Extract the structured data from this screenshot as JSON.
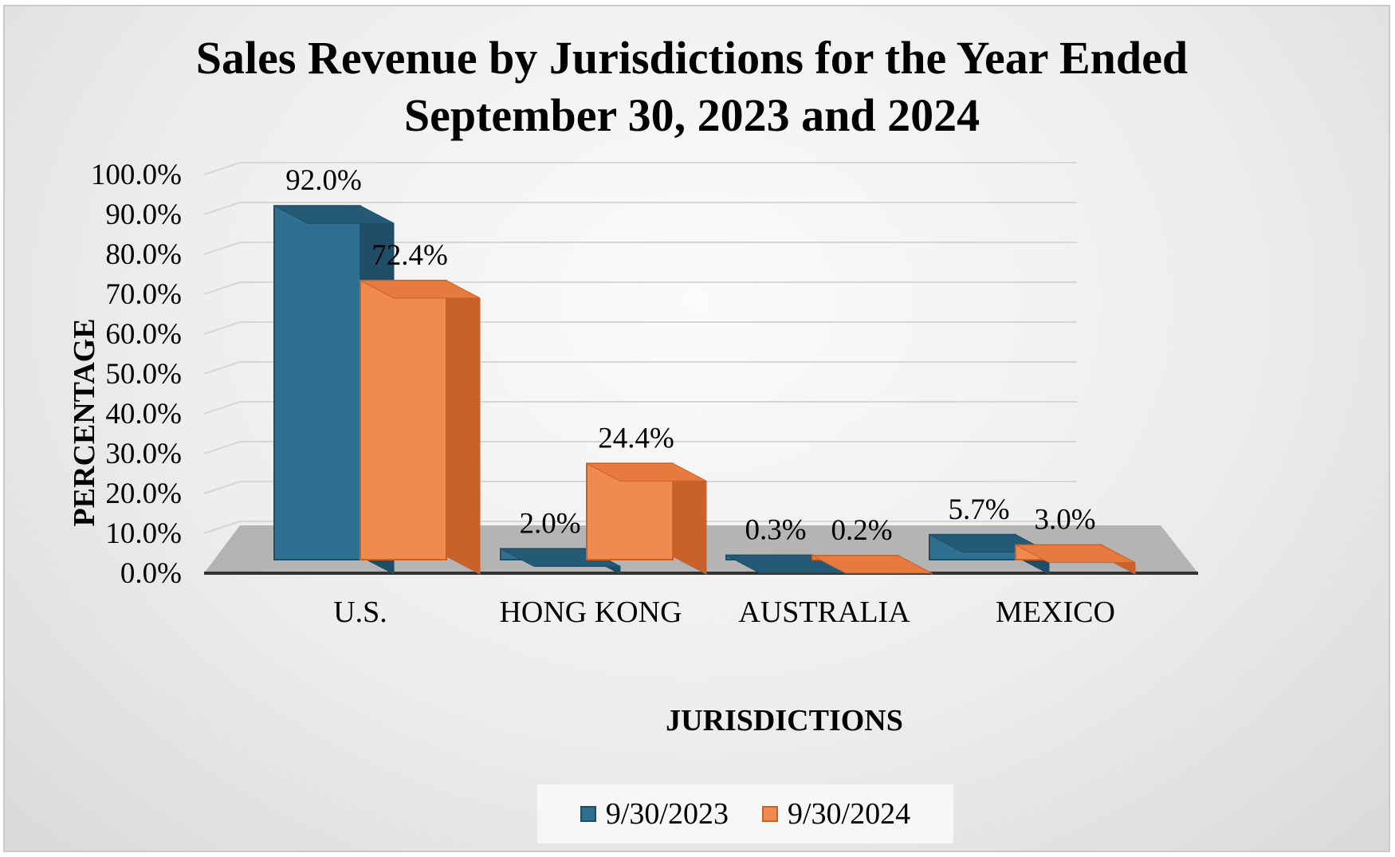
{
  "chart_data": {
    "type": "bar",
    "title": [
      "Sales Revenue by Jurisdictions for the Year Ended",
      "September 30, 2023 and 2024"
    ],
    "xlabel": "JURISDICTIONS",
    "ylabel": "PERCENTAGE",
    "categories": [
      "U.S.",
      "HONG KONG",
      "AUSTRALIA",
      "MEXICO"
    ],
    "series": [
      {
        "name": "9/30/2023",
        "values": [
          92.0,
          2.0,
          0.3,
          5.7
        ],
        "labels": [
          "92.0%",
          "2.0%",
          "0.3%",
          "5.7%"
        ]
      },
      {
        "name": "9/30/2024",
        "values": [
          72.4,
          24.4,
          0.2,
          3.0
        ],
        "labels": [
          "72.4%",
          "24.4%",
          "0.2%",
          "3.0%"
        ]
      }
    ],
    "ylim": [
      0,
      100
    ],
    "yticks": [
      "0.0%",
      "10.0%",
      "20.0%",
      "30.0%",
      "40.0%",
      "50.0%",
      "60.0%",
      "70.0%",
      "80.0%",
      "90.0%",
      "100.0%"
    ],
    "grid": true,
    "style": "3d-clustered-column",
    "legend_position": "bottom",
    "colors": {
      "series_2023_front": "#2f7090",
      "series_2023_side": "#1f4e66",
      "series_2023_top": "#245a76",
      "series_2024_front": "#f08a4e",
      "series_2024_side": "#c8622a",
      "series_2024_top": "#e77a3e",
      "floor": "#a9a9a9",
      "gridline": "#d6d6d6",
      "axis": "#333333"
    }
  }
}
